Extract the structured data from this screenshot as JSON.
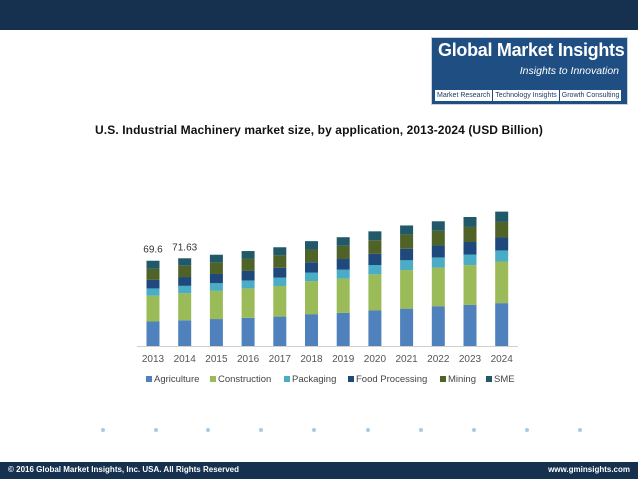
{
  "logo": {
    "title": "Global Market Insights",
    "tagline": "Insights to Innovation",
    "links": [
      "Market Research",
      "Technology Insights",
      "Growth Consulting"
    ]
  },
  "colors": {
    "header_bar": "#16304f",
    "logo_bg": "#1f4e82",
    "dot": "#a9cbe3"
  },
  "chart_data": {
    "type": "bar",
    "stacked": true,
    "title": "U.S. Industrial Machinery market size, by application, 2013-2024 (USD Billion)",
    "xlabel": "",
    "ylabel": "",
    "categories": [
      "2013",
      "2014",
      "2015",
      "2016",
      "2017",
      "2018",
      "2019",
      "2020",
      "2021",
      "2022",
      "2023",
      "2024"
    ],
    "ylim": [
      0,
      160
    ],
    "grid": false,
    "legend_position": "bottom",
    "data_labels": [
      {
        "category": "2013",
        "text": "69.6"
      },
      {
        "category": "2014",
        "text": "71.63"
      }
    ],
    "series": [
      {
        "name": "Agriculture",
        "color": "#4f81bd",
        "values": [
          20.0,
          21.0,
          22.0,
          23.0,
          24.0,
          26.0,
          27.0,
          29.0,
          30.5,
          32.5,
          33.5,
          35.0
        ]
      },
      {
        "name": "Construction",
        "color": "#9bbb59",
        "values": [
          21.0,
          22.0,
          23.0,
          24.0,
          25.0,
          27.0,
          28.0,
          29.5,
          31.5,
          31.5,
          32.5,
          34.0
        ]
      },
      {
        "name": "Packaging",
        "color": "#4bacc6",
        "values": [
          6.0,
          6.1,
          6.3,
          6.5,
          6.8,
          7.0,
          7.3,
          7.6,
          8.0,
          8.3,
          8.7,
          9.0
        ]
      },
      {
        "name": "Food Processing",
        "color": "#1f497d",
        "values": [
          7.0,
          7.2,
          7.5,
          7.8,
          8.1,
          8.4,
          8.7,
          9.1,
          9.4,
          9.8,
          10.2,
          10.6
        ]
      },
      {
        "name": "Mining",
        "color": "#4f6228",
        "values": [
          9.0,
          9.2,
          9.5,
          9.8,
          10.1,
          10.4,
          10.8,
          11.1,
          11.5,
          11.9,
          12.3,
          12.7
        ]
      },
      {
        "name": "SME",
        "color": "#215968",
        "values": [
          6.6,
          6.1,
          6.2,
          6.4,
          6.6,
          6.8,
          7.0,
          7.3,
          7.5,
          7.8,
          8.1,
          8.4
        ]
      }
    ]
  },
  "footer": {
    "copyright": "© 2016 Global Market Insights, Inc. USA. All Rights Reserved",
    "website": "www.gminsights.com"
  }
}
